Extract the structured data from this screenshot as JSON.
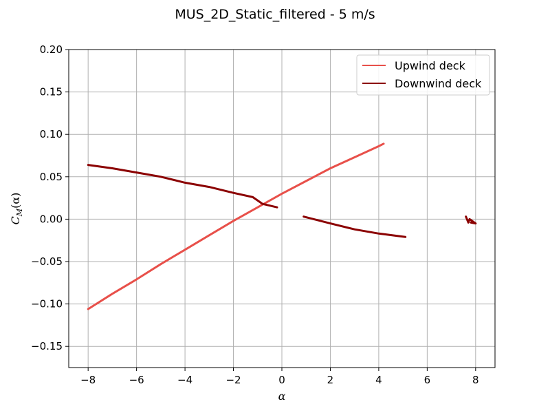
{
  "chart_data": {
    "type": "line",
    "title": "MUS_2D_Static_filtered - 5 m/s",
    "xlabel": "α",
    "ylabel": {
      "main": "C",
      "sub": "M",
      "arg": "(α)"
    },
    "xlim": [
      -8.8,
      8.8
    ],
    "ylim": [
      -0.175,
      0.2
    ],
    "xticks": [
      -8,
      -6,
      -4,
      -2,
      0,
      2,
      4,
      6,
      8
    ],
    "xtick_labels": [
      "−8",
      "−6",
      "−4",
      "−2",
      "0",
      "2",
      "4",
      "6",
      "8"
    ],
    "yticks": [
      -0.15,
      -0.1,
      -0.05,
      0.0,
      0.05,
      0.1,
      0.15,
      0.2
    ],
    "ytick_labels": [
      "−0.15",
      "−0.10",
      "−0.05",
      "0.00",
      "0.05",
      "0.10",
      "0.15",
      "0.20"
    ],
    "grid": true,
    "legend_position": "top-right",
    "series": [
      {
        "name": "Upwind deck",
        "color": "#e8504a",
        "segments": [
          {
            "x": [
              -8.0,
              -7.0,
              -6.0,
              -5.0,
              -4.0,
              -3.0,
              -2.0,
              -1.0,
              0.0,
              1.0,
              2.0,
              3.0,
              4.0,
              4.2
            ],
            "y": [
              -0.106,
              -0.088,
              -0.071,
              -0.053,
              -0.036,
              -0.019,
              -0.002,
              0.014,
              0.03,
              0.045,
              0.06,
              0.073,
              0.086,
              0.089
            ]
          }
        ]
      },
      {
        "name": "Downwind deck",
        "color": "#8b0000",
        "segments": [
          {
            "x": [
              -8.0,
              -7.0,
              -6.0,
              -5.0,
              -4.0,
              -3.0,
              -2.0,
              -1.2,
              -0.8,
              -0.2
            ],
            "y": [
              0.064,
              0.06,
              0.055,
              0.05,
              0.043,
              0.038,
              0.031,
              0.026,
              0.018,
              0.014
            ]
          },
          {
            "x": [
              0.9,
              2.0,
              3.0,
              4.0,
              5.1
            ],
            "y": [
              0.003,
              -0.005,
              -0.012,
              -0.017,
              -0.021
            ]
          },
          {
            "x": [
              7.6,
              7.7,
              7.75,
              7.9,
              8.0,
              7.8
            ],
            "y": [
              0.003,
              -0.004,
              0.0,
              -0.003,
              -0.005,
              -0.004
            ]
          }
        ]
      }
    ]
  }
}
